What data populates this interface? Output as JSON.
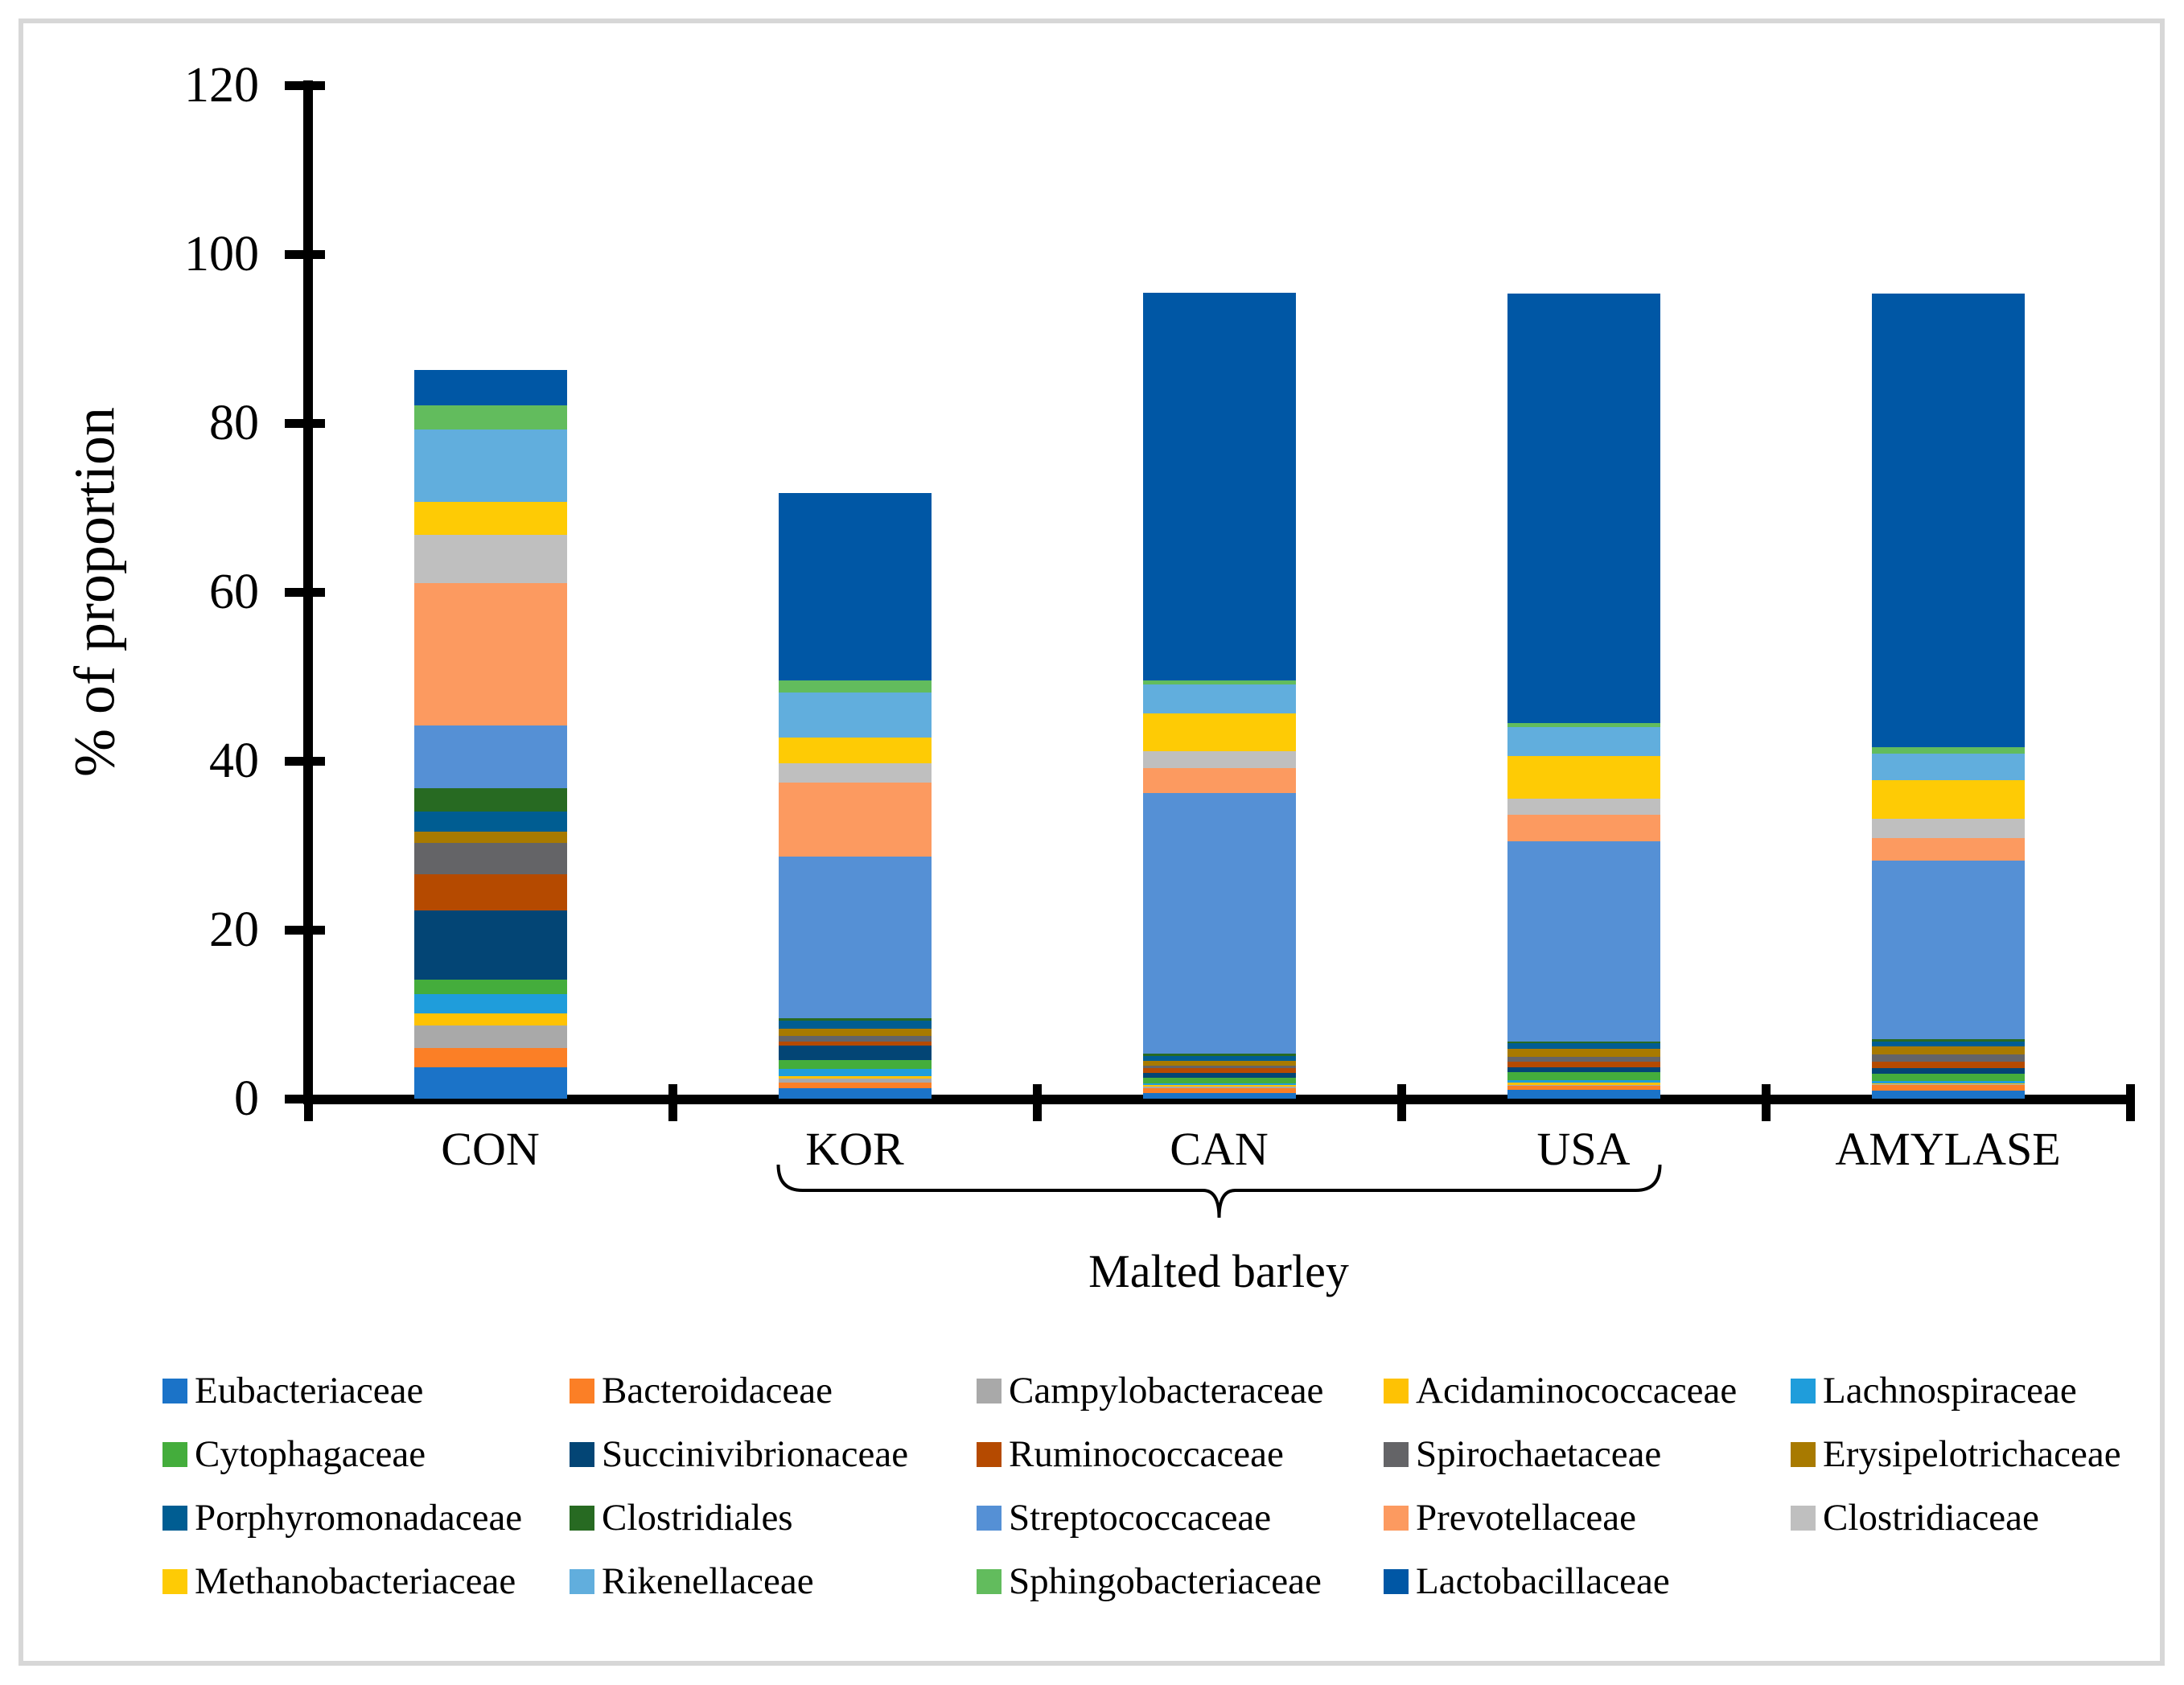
{
  "figure": {
    "ylabel": "% of proportion",
    "group_label": "Malted barley"
  },
  "chart_data": {
    "type": "bar",
    "stacked": true,
    "title": "",
    "xlabel": "",
    "ylabel": "% of proportion",
    "ylim": [
      0,
      120
    ],
    "yticks": [
      0,
      20,
      40,
      60,
      80,
      100,
      120
    ],
    "grid": false,
    "legend_position": "bottom",
    "categories": [
      "CON",
      "KOR",
      "CAN",
      "USA",
      "AMYLASE"
    ],
    "group_annotation": {
      "label": "Malted barley",
      "from": "KOR",
      "to": "USA"
    },
    "series": [
      {
        "name": "Eubacteriaceae",
        "color": "#1B73C8",
        "values": [
          3.7,
          1.2,
          0.7,
          1.0,
          0.9
        ]
      },
      {
        "name": "Bacteroidaceae",
        "color": "#FB7F26",
        "values": [
          2.3,
          0.7,
          0.5,
          0.5,
          0.7
        ]
      },
      {
        "name": "Campylobacteraceae",
        "color": "#A9A9A9",
        "values": [
          2.7,
          0.5,
          0.2,
          0.1,
          0.1
        ]
      },
      {
        "name": "Acidaminococcaceae",
        "color": "#FEC204",
        "values": [
          1.4,
          0.3,
          0.2,
          0.3,
          0.1
        ]
      },
      {
        "name": "Lachnospiraceae",
        "color": "#1F9DDB",
        "values": [
          2.3,
          0.8,
          0.2,
          0.3,
          0.3
        ]
      },
      {
        "name": "Cytophagaceae",
        "color": "#44AD3C",
        "values": [
          1.7,
          1.1,
          0.7,
          0.9,
          0.8
        ]
      },
      {
        "name": "Succinivibrionaceae",
        "color": "#034575",
        "values": [
          8.2,
          1.7,
          0.5,
          0.6,
          0.7
        ]
      },
      {
        "name": "Ruminococcaceae",
        "color": "#B54A00",
        "values": [
          4.3,
          0.5,
          0.6,
          0.7,
          0.8
        ]
      },
      {
        "name": "Spirochaetaceae",
        "color": "#646467",
        "values": [
          3.7,
          0.6,
          0.3,
          0.5,
          0.8
        ]
      },
      {
        "name": "Erysipelotrichaceae",
        "color": "#A87A00",
        "values": [
          1.3,
          0.9,
          0.6,
          1.0,
          1.0
        ]
      },
      {
        "name": "Porphyromonadaceae",
        "color": "#005D92",
        "values": [
          2.4,
          0.9,
          0.5,
          0.7,
          0.6
        ]
      },
      {
        "name": "Clostridiales",
        "color": "#276A22",
        "values": [
          2.8,
          0.3,
          0.3,
          0.2,
          0.2
        ]
      },
      {
        "name": "Streptococcaceae",
        "color": "#5590D5",
        "values": [
          7.4,
          19.2,
          30.9,
          23.7,
          21.2
        ]
      },
      {
        "name": "Prevotellaceae",
        "color": "#FC9A60",
        "values": [
          16.8,
          8.7,
          2.9,
          3.1,
          2.7
        ]
      },
      {
        "name": "Clostridiaceae",
        "color": "#BFBFBF",
        "values": [
          5.8,
          2.3,
          2.0,
          1.9,
          2.2
        ]
      },
      {
        "name": "Methanobacteriaceae",
        "color": "#FECB05",
        "values": [
          3.9,
          3.1,
          4.5,
          5.1,
          4.6
        ]
      },
      {
        "name": "Rikenellaceae",
        "color": "#61AEDD",
        "values": [
          8.5,
          5.3,
          3.4,
          3.4,
          3.2
        ]
      },
      {
        "name": "Sphingobacteriaceae",
        "color": "#62BC5D",
        "values": [
          2.9,
          1.4,
          0.5,
          0.5,
          0.7
        ]
      },
      {
        "name": "Lactobacillaceae",
        "color": "#0057A5",
        "values": [
          4.2,
          22.2,
          45.9,
          50.8,
          53.7
        ]
      }
    ]
  }
}
